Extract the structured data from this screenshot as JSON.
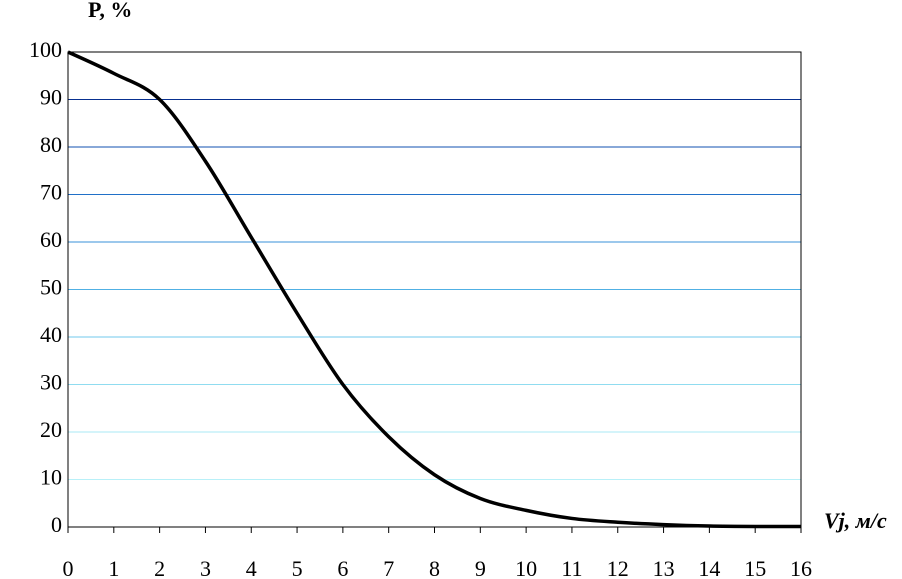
{
  "chart_data": {
    "type": "line",
    "y_label": "P, %",
    "x_label": "Vj, м/с",
    "x": [
      0,
      1,
      2,
      3,
      4,
      5,
      6,
      7,
      8,
      9,
      10,
      11,
      12,
      13,
      14,
      15,
      16
    ],
    "series": [
      {
        "color": "#000000",
        "values": [
          100,
          95.5,
          90,
          77,
          61,
          45,
          30,
          19,
          11,
          6,
          3.5,
          1.8,
          1,
          0.5,
          0.2,
          0.1,
          0.1
        ]
      }
    ],
    "xlim": [
      0,
      16
    ],
    "xticks": [
      0,
      1,
      2,
      3,
      4,
      5,
      6,
      7,
      8,
      9,
      10,
      11,
      12,
      13,
      14,
      15,
      16
    ],
    "ylim": [
      0,
      100
    ],
    "yticks": [
      0,
      10,
      20,
      30,
      40,
      50,
      60,
      70,
      80,
      90,
      100
    ],
    "grid": true,
    "grid_colors": [
      "#000000",
      "#b8f0f8",
      "#a8e8f4",
      "#90dcf0",
      "#70c8ec",
      "#50b0e4",
      "#3890d8",
      "#2070c8",
      "#1050b0",
      "#083090",
      "#000000"
    ]
  }
}
